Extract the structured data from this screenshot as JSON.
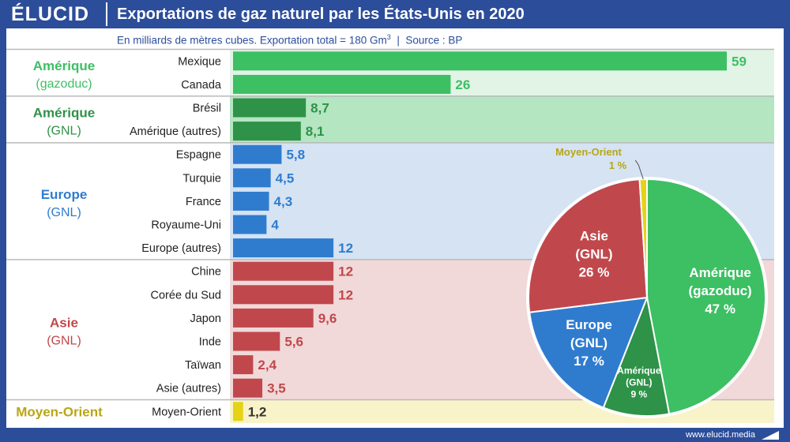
{
  "header": {
    "logo": "ÉLUCID",
    "title": "Exportations de gaz naturel par les États-Unis en 2020",
    "subtitle_main": "En milliards de mètres cubes. Exportation total = 180 Gm",
    "subtitle_sup": "3",
    "subtitle_source": "  |  Source : BP"
  },
  "footer": {
    "url": "www.elucid.media"
  },
  "colors": {
    "header_bg": "#2c4d9a",
    "amerique_gazoduc": "#3dbf63",
    "amerique_gazoduc_band": "#e2f4e6",
    "amerique_gnl": "#2e9248",
    "amerique_gnl_band": "#b4e6c1",
    "europe": "#2f7ccf",
    "europe_band": "#d5e3f3",
    "asie": "#c0484c",
    "asie_band": "#f1d9d9",
    "moyen_orient": "#e6d216",
    "moyen_orient_band": "#f8f3c9",
    "moyen_orient_text": "#b8a614"
  },
  "chart_data": [
    {
      "type": "bar",
      "orientation": "horizontal",
      "title": "Exportations de gaz naturel par les États-Unis en 2020",
      "unit": "Gm3",
      "groups": [
        {
          "key": "amerique_gazoduc",
          "name": "Amérique",
          "sub": "(gazoduc)",
          "items": [
            {
              "label": "Mexique",
              "value": 59,
              "text": "59"
            },
            {
              "label": "Canada",
              "value": 26,
              "text": "26"
            }
          ]
        },
        {
          "key": "amerique_gnl",
          "name": "Amérique",
          "sub": "(GNL)",
          "items": [
            {
              "label": "Brésil",
              "value": 8.7,
              "text": "8,7"
            },
            {
              "label": "Amérique (autres)",
              "value": 8.1,
              "text": "8,1"
            }
          ]
        },
        {
          "key": "europe",
          "name": "Europe",
          "sub": "(GNL)",
          "items": [
            {
              "label": "Espagne",
              "value": 5.8,
              "text": "5,8"
            },
            {
              "label": "Turquie",
              "value": 4.5,
              "text": "4,5"
            },
            {
              "label": "France",
              "value": 4.3,
              "text": "4,3"
            },
            {
              "label": "Royaume-Uni",
              "value": 4,
              "text": "4"
            },
            {
              "label": "Europe (autres)",
              "value": 12,
              "text": "12"
            }
          ]
        },
        {
          "key": "asie",
          "name": "Asie",
          "sub": "(GNL)",
          "items": [
            {
              "label": "Chine",
              "value": 12,
              "text": "12"
            },
            {
              "label": "Corée du Sud",
              "value": 12,
              "text": "12"
            },
            {
              "label": "Japon",
              "value": 9.6,
              "text": "9,6"
            },
            {
              "label": "Inde",
              "value": 5.6,
              "text": "5,6"
            },
            {
              "label": "Taïwan",
              "value": 2.4,
              "text": "2,4"
            },
            {
              "label": "Asie (autres)",
              "value": 3.5,
              "text": "3,5"
            }
          ]
        },
        {
          "key": "moyen_orient",
          "name": "Moyen-Orient",
          "sub": "",
          "items": [
            {
              "label": "Moyen-Orient",
              "value": 1.2,
              "text": "1,2"
            }
          ]
        }
      ],
      "xlim": [
        0,
        59
      ]
    },
    {
      "type": "pie",
      "slices": [
        {
          "key": "amerique_gazoduc",
          "lines": [
            "Amérique",
            "(gazoduc)",
            "47 %"
          ],
          "value": 47
        },
        {
          "key": "amerique_gnl",
          "lines": [
            "Amérique",
            "(GNL)",
            "9 %"
          ],
          "value": 9
        },
        {
          "key": "europe",
          "lines": [
            "Europe",
            "(GNL)",
            "17 %"
          ],
          "value": 17
        },
        {
          "key": "asie",
          "lines": [
            "Asie",
            "(GNL)",
            "26 %"
          ],
          "value": 26
        },
        {
          "key": "moyen_orient",
          "lines": [
            "Moyen-Orient",
            "1 %"
          ],
          "value": 1
        }
      ]
    }
  ]
}
